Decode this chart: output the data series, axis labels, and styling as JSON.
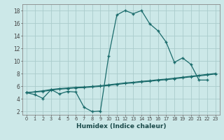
{
  "xlabel": "Humidex (Indice chaleur)",
  "background_color": "#cce8e8",
  "grid_color": "#aacccc",
  "line_color": "#1a6b6b",
  "x_values": [
    0,
    1,
    2,
    3,
    4,
    5,
    6,
    7,
    8,
    9,
    10,
    11,
    12,
    13,
    14,
    15,
    16,
    17,
    18,
    19,
    20,
    21,
    22,
    23
  ],
  "line_main": [
    5.0,
    4.7,
    4.1,
    5.5,
    4.8,
    5.2,
    5.1,
    2.7,
    2.0,
    2.1,
    10.8,
    17.3,
    18.0,
    17.5,
    18.0,
    15.9,
    14.8,
    13.0,
    9.8,
    10.5,
    9.5,
    7.0,
    7.0,
    null
  ],
  "line_linear1": [
    5.0,
    5.15,
    5.3,
    5.5,
    5.65,
    5.75,
    5.85,
    5.9,
    6.0,
    6.1,
    6.25,
    6.4,
    6.55,
    6.65,
    6.8,
    6.9,
    7.05,
    7.15,
    7.3,
    7.45,
    7.6,
    7.75,
    7.9,
    8.05
  ],
  "line_linear2": [
    5.0,
    5.1,
    5.2,
    5.4,
    5.55,
    5.65,
    5.75,
    5.8,
    5.9,
    6.0,
    6.15,
    6.3,
    6.45,
    6.55,
    6.7,
    6.8,
    6.95,
    7.05,
    7.2,
    7.35,
    7.5,
    7.65,
    7.8,
    7.95
  ],
  "ylim": [
    1.5,
    19
  ],
  "xlim": [
    -0.5,
    23.5
  ]
}
